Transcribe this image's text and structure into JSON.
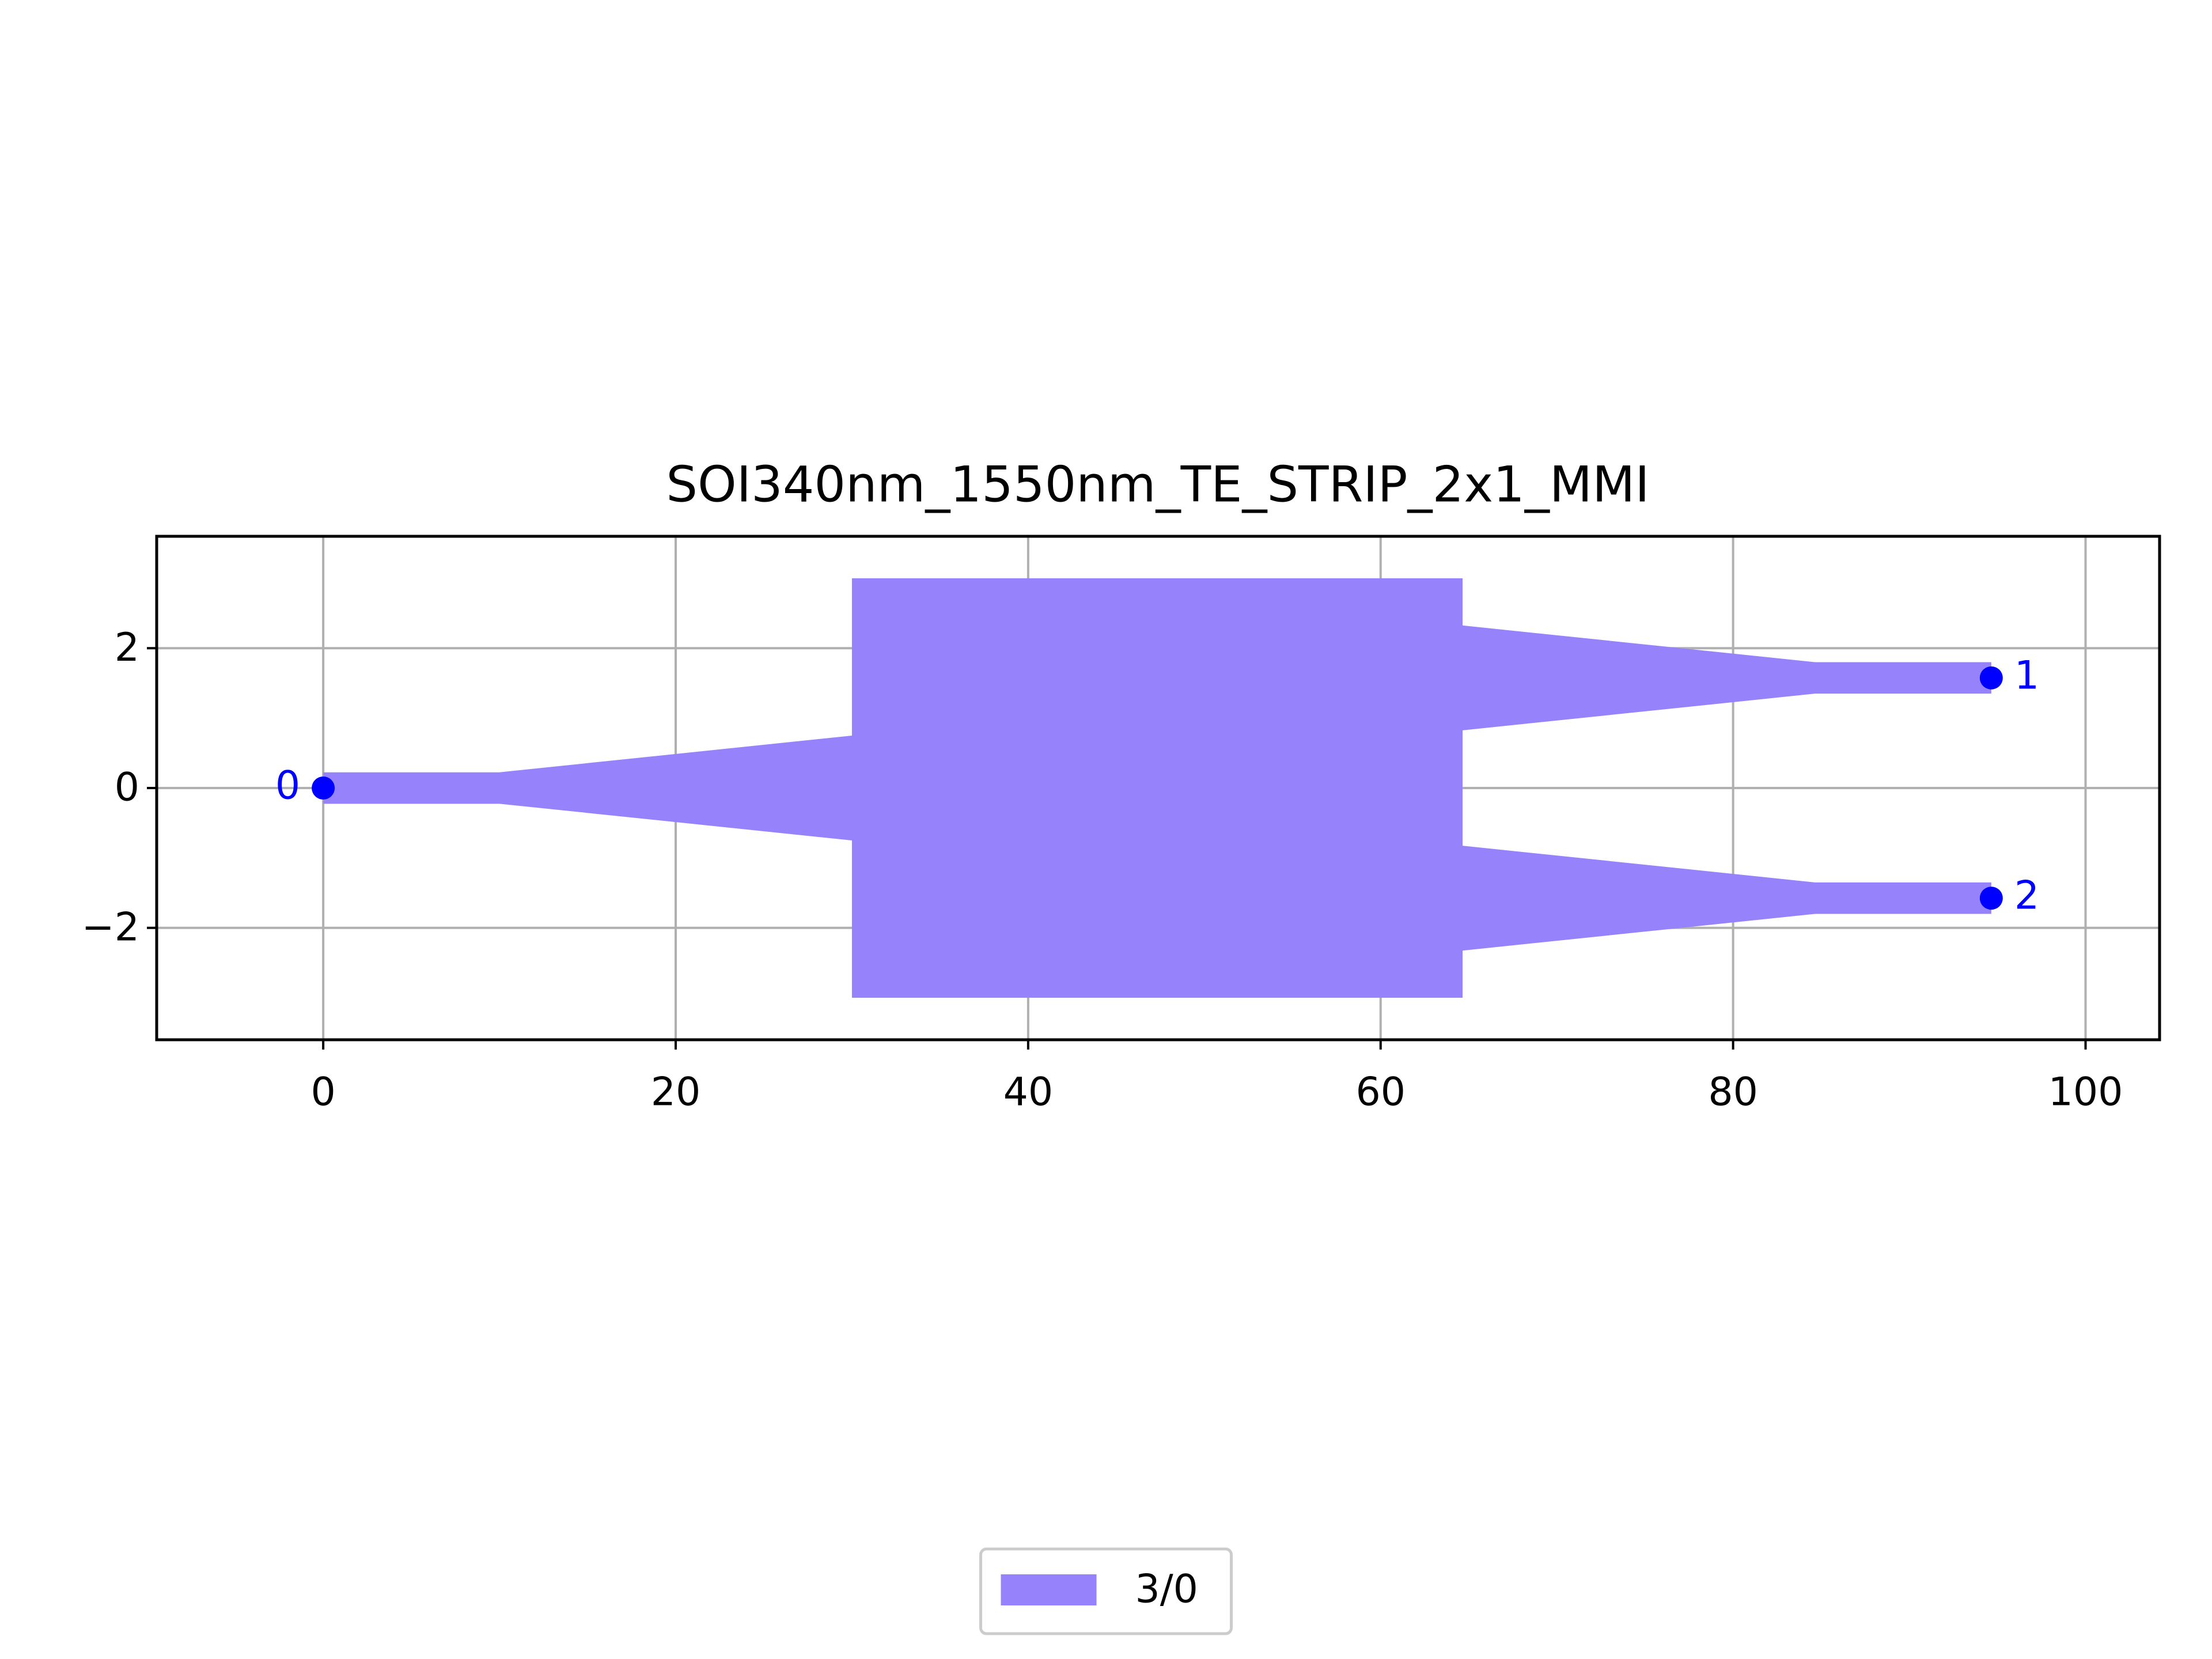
{
  "chart_data": {
    "type": "layout",
    "title": "SOI340nm_1550nm_TE_STRIP_2x1_MMI",
    "polygons": [
      {
        "name": "3/0",
        "color": "#9683fc",
        "x": [
          0,
          10,
          30,
          30,
          64.65,
          64.65,
          84.65,
          94.65,
          94.65,
          84.65,
          64.65,
          64.65,
          84.65,
          94.65,
          94.65,
          84.65,
          64.65,
          64.65,
          30,
          30,
          10,
          0
        ],
        "y": [
          0.225,
          0.225,
          0.75,
          3,
          3,
          2.325,
          1.8,
          1.8,
          1.35,
          1.35,
          0.825,
          -0.825,
          -1.35,
          -1.35,
          -1.8,
          -1.8,
          -2.325,
          -3,
          -3,
          -0.75,
          -0.225,
          -0.225
        ]
      }
    ],
    "ports": {
      "names": [
        "0",
        "1",
        "2"
      ],
      "x": [
        0,
        94.65,
        94.65
      ],
      "y": [
        0,
        1.575,
        -1.575
      ],
      "color": "#0000ff"
    },
    "xlim": [
      -9.45,
      104.2
    ],
    "ylim": [
      -3.6,
      3.6
    ],
    "xticks": [
      0,
      20,
      40,
      60,
      80,
      100
    ],
    "yticks": [
      {
        "value": -2,
        "label": "−2"
      },
      0,
      2
    ],
    "grid": true,
    "legend": "lower center"
  }
}
